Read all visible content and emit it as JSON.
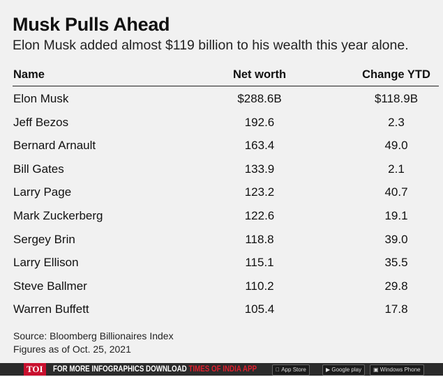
{
  "title": "Musk Pulls Ahead",
  "subtitle": "Elon Musk added almost $119 billion to his wealth this year alone.",
  "table": {
    "headers": [
      "Name",
      "Net worth",
      "Change YTD"
    ],
    "rows": [
      [
        "Elon Musk",
        "$288.6B",
        "$118.9B"
      ],
      [
        "Jeff Bezos",
        "192.6",
        "2.3"
      ],
      [
        "Bernard Arnault",
        "163.4",
        "49.0"
      ],
      [
        "Bill Gates",
        "133.9",
        "2.1"
      ],
      [
        "Larry Page",
        "123.2",
        "40.7"
      ],
      [
        "Mark Zuckerberg",
        "122.6",
        "19.1"
      ],
      [
        "Sergey Brin",
        "118.8",
        "39.0"
      ],
      [
        "Larry Ellison",
        "115.1",
        "35.5"
      ],
      [
        "Steve Ballmer",
        "110.2",
        "29.8"
      ],
      [
        "Warren Buffett",
        "105.4",
        "17.8"
      ]
    ]
  },
  "source": "Source: Bloomberg Billionaires Index",
  "asof": "Figures as of Oct. 25, 2021",
  "footer": {
    "logo": "TOI",
    "promo_white": "FOR MORE  INFOGRAPHICS DOWNLOAD ",
    "promo_red": "TIMES OF INDIA  APP",
    "app_store": "App Store",
    "google_play": "Google play",
    "windows_phone": "Windows Phone"
  }
}
